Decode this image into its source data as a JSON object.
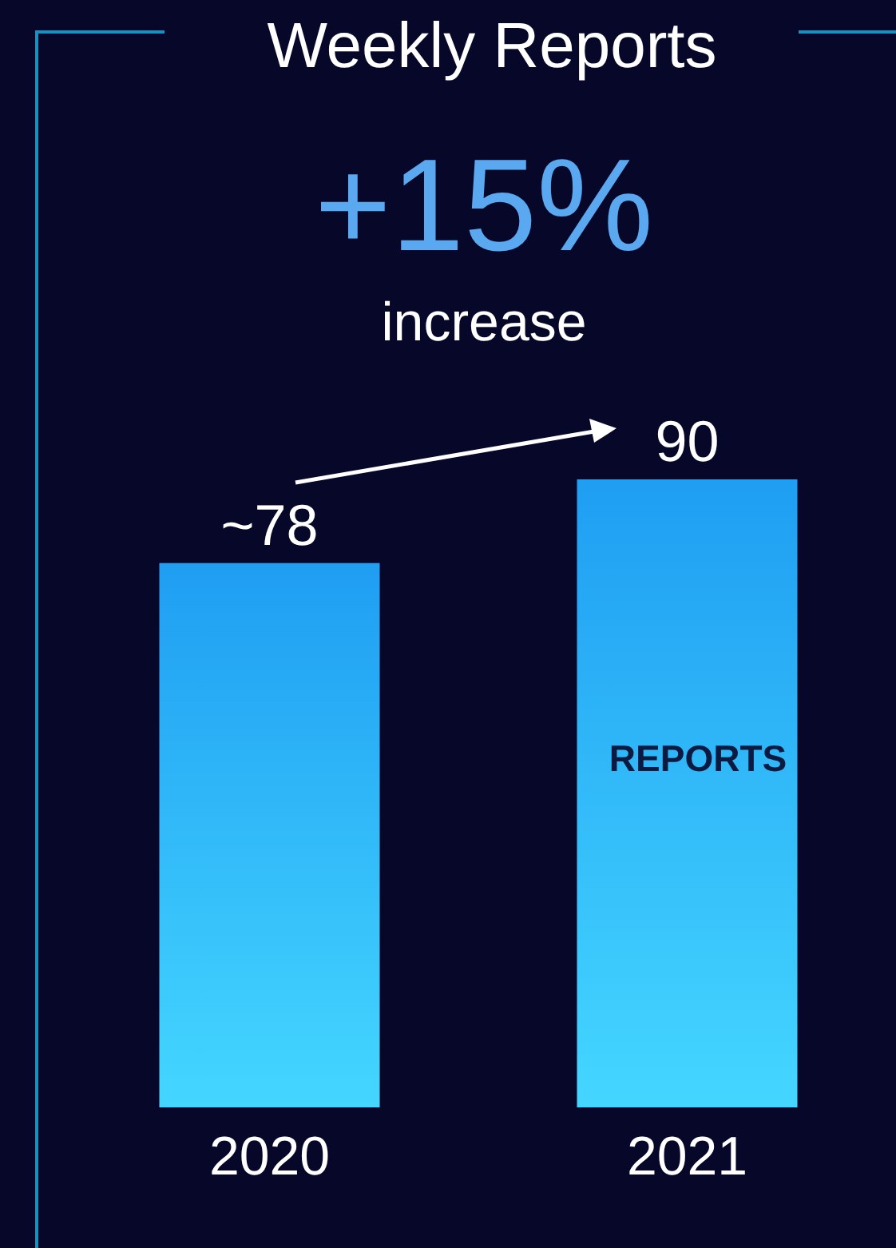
{
  "chart_data": {
    "type": "bar",
    "title": "Weekly Reports",
    "categories": [
      "2020",
      "2021"
    ],
    "values": [
      78,
      90
    ],
    "value_labels": [
      "~78",
      "90"
    ],
    "color": "#1f9ef2",
    "annotations": [
      "+15%",
      "increase",
      "REPORTS"
    ]
  }
}
